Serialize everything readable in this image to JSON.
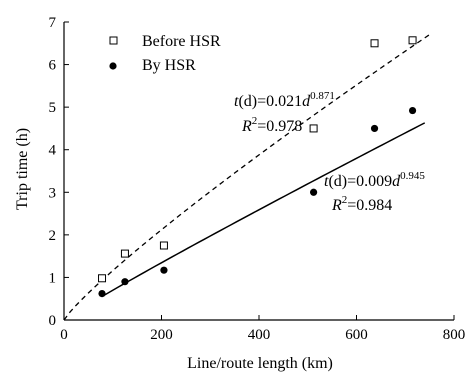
{
  "chart_data": {
    "type": "scatter",
    "xlabel": "Line/route length (km)",
    "ylabel": "Trip time (h)",
    "xlim": [
      0,
      800
    ],
    "ylim": [
      0,
      7
    ],
    "x_ticks": [
      0,
      200,
      400,
      600,
      800
    ],
    "y_ticks": [
      0,
      1,
      2,
      3,
      4,
      5,
      6,
      7
    ],
    "grid": false,
    "legend_position": "top-left",
    "series": [
      {
        "name": "Before HSR",
        "marker": "open-square",
        "fit_line": "dashed",
        "points": [
          {
            "x": 78,
            "y": 0.98
          },
          {
            "x": 125,
            "y": 1.56
          },
          {
            "x": 205,
            "y": 1.75
          },
          {
            "x": 512,
            "y": 4.5
          },
          {
            "x": 637,
            "y": 6.5
          },
          {
            "x": 715,
            "y": 6.57
          }
        ],
        "fit": {
          "coef": 0.021,
          "exp": 0.871,
          "x_range": [
            0,
            750
          ]
        },
        "equation": {
          "prefix": "t",
          "paren": "(d)=0.021",
          "var": "d",
          "exponent": "0.871"
        },
        "r2": {
          "label": "R",
          "sup": "2",
          "value": "=0.978"
        }
      },
      {
        "name": "By HSR",
        "marker": "filled-circle",
        "fit_line": "solid",
        "points": [
          {
            "x": 78,
            "y": 0.62
          },
          {
            "x": 125,
            "y": 0.9
          },
          {
            "x": 205,
            "y": 1.17
          },
          {
            "x": 512,
            "y": 3.0
          },
          {
            "x": 637,
            "y": 4.5
          },
          {
            "x": 715,
            "y": 4.92
          }
        ],
        "fit": {
          "coef": 0.009,
          "exp": 0.945,
          "x_range": [
            78,
            740
          ]
        },
        "equation": {
          "prefix": "t",
          "paren": "(d)=0.009",
          "var": "d",
          "exponent": "0.945"
        },
        "r2": {
          "label": "R",
          "sup": "2",
          "value": "=0.984"
        }
      }
    ]
  }
}
